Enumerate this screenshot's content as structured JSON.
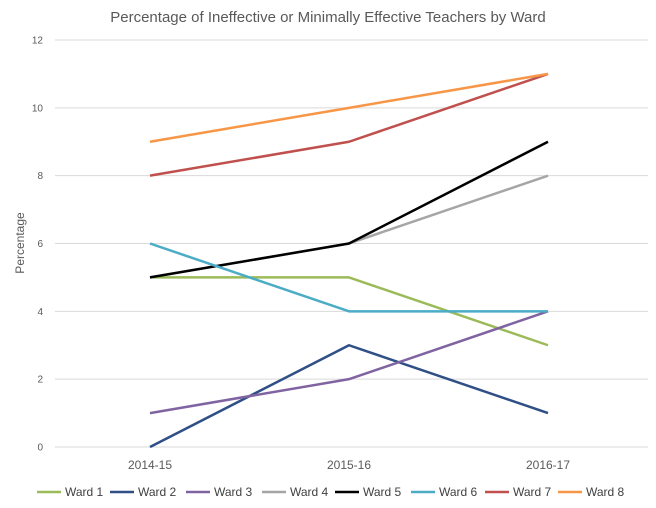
{
  "chart_data": {
    "type": "line",
    "title": "Percentage of Ineffective or Minimally Effective Teachers by Ward",
    "xlabel": "",
    "ylabel": "Percentage",
    "categories": [
      "2014-15",
      "2015-16",
      "2016-17"
    ],
    "ylim": [
      0,
      12
    ],
    "yticks": [
      0,
      2,
      4,
      6,
      8,
      10,
      12
    ],
    "grid": true,
    "legend_position": "bottom",
    "series": [
      {
        "name": "Ward 1",
        "color": "#9bbb59",
        "values": [
          5,
          5,
          3
        ]
      },
      {
        "name": "Ward 2",
        "color": "#2f4f86",
        "values": [
          0,
          3,
          1
        ]
      },
      {
        "name": "Ward 3",
        "color": "#8064a2",
        "values": [
          1,
          2,
          4
        ]
      },
      {
        "name": "Ward 4",
        "color": "#a6a6a6",
        "values": [
          5,
          6,
          8
        ]
      },
      {
        "name": "Ward 5",
        "color": "#000000",
        "values": [
          5,
          6,
          9
        ]
      },
      {
        "name": "Ward 6",
        "color": "#4bacc6",
        "values": [
          6,
          4,
          4
        ]
      },
      {
        "name": "Ward 7",
        "color": "#c0504d",
        "values": [
          8,
          9,
          11
        ]
      },
      {
        "name": "Ward 8",
        "color": "#f79646",
        "values": [
          9,
          10,
          11
        ]
      }
    ]
  }
}
